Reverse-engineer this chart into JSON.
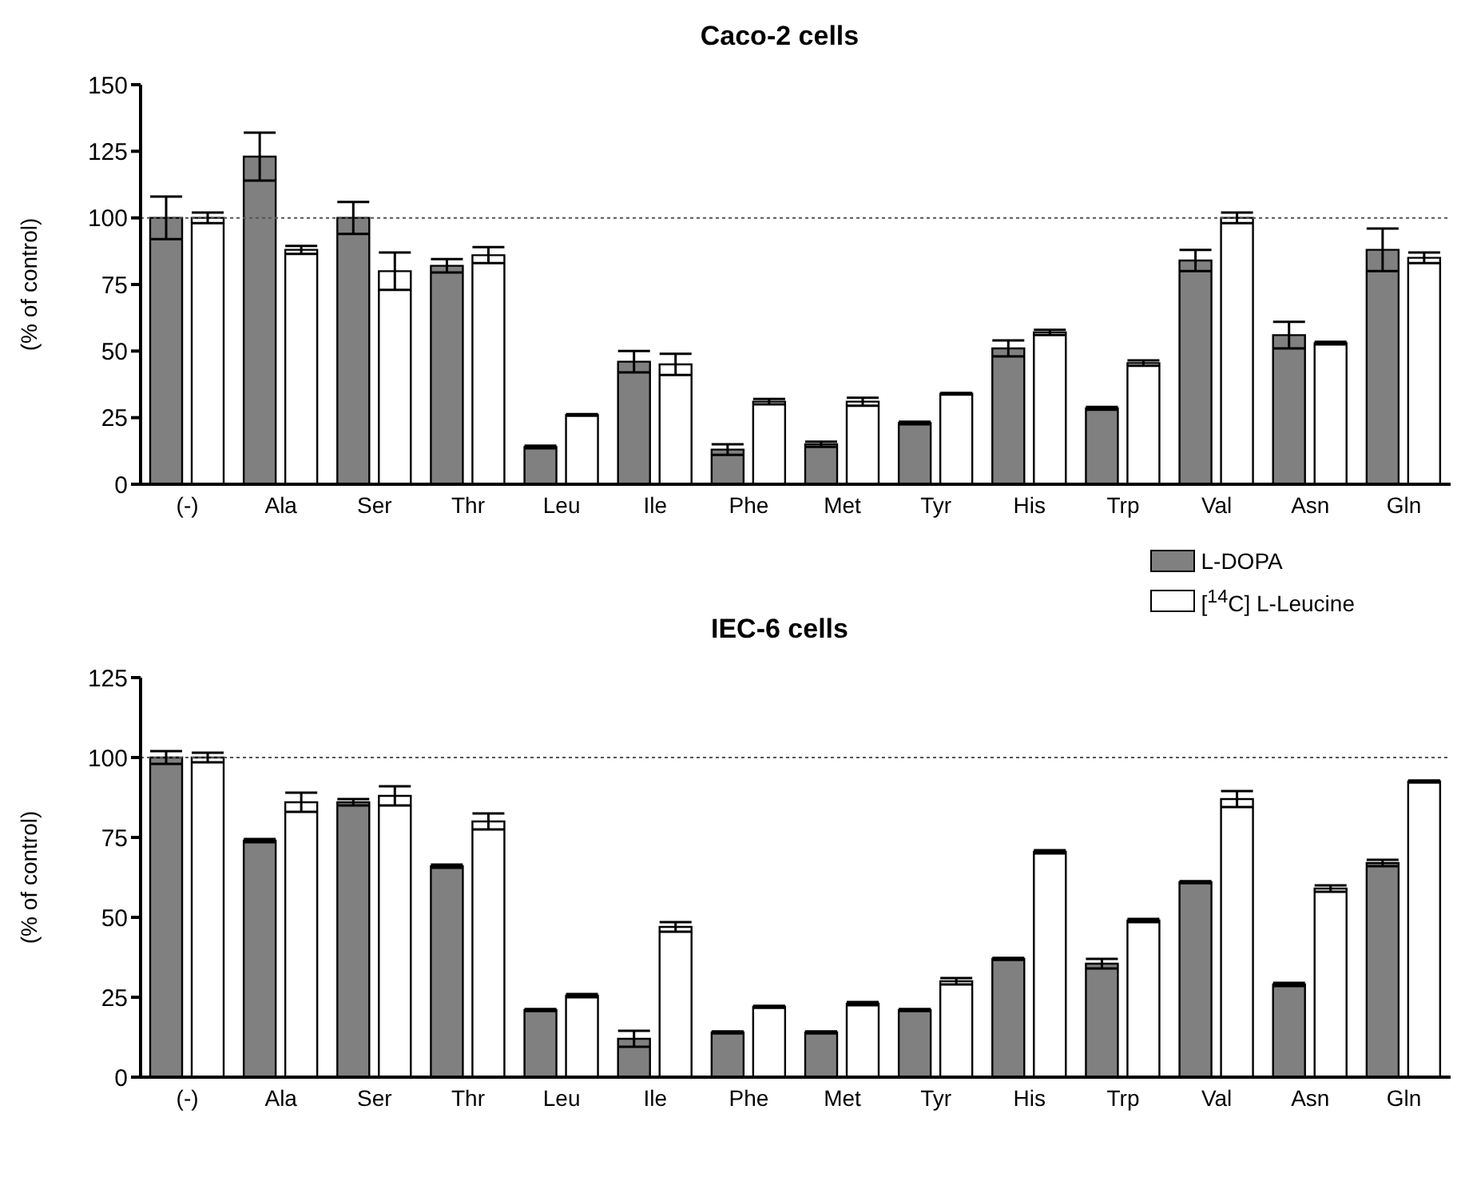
{
  "chart_data": [
    {
      "type": "bar",
      "title": "Caco-2 cells",
      "ylabel": "(% of control)",
      "categories": [
        "(-)",
        "Ala",
        "Ser",
        "Thr",
        "Leu",
        "Ile",
        "Phe",
        "Met",
        "Tyr",
        "His",
        "Trp",
        "Val",
        "Asn",
        "Gln"
      ],
      "ylim": [
        0,
        150
      ],
      "yticks": [
        0,
        25,
        50,
        75,
        100,
        125,
        150
      ],
      "grid": false,
      "legend": false,
      "ref_lines": [
        {
          "axis": "y",
          "value": 100,
          "label": null,
          "color": "#555555",
          "line_style": "dotted"
        }
      ],
      "series": [
        {
          "color": "#808080",
          "values": [
            100,
            123,
            100,
            82,
            14,
            46,
            13,
            15,
            23,
            51,
            28.5,
            84,
            56,
            88
          ],
          "errors": [
            8,
            9,
            6,
            2.5,
            0.5,
            4,
            2,
            1,
            0.5,
            3,
            0.5,
            4,
            5,
            8
          ]
        },
        {
          "color": "#ffffff",
          "values": [
            100,
            88,
            80,
            86,
            26,
            45,
            31,
            31,
            34,
            57,
            45.5,
            100,
            53,
            85
          ],
          "errors": [
            2,
            1.5,
            7,
            3,
            0.3,
            4,
            1,
            1.5,
            0.3,
            1,
            1,
            2,
            0.5,
            2
          ]
        }
      ]
    },
    {
      "type": "bar",
      "title": "IEC-6 cells",
      "ylabel": "(% of control)",
      "categories": [
        "(-)",
        "Ala",
        "Ser",
        "Thr",
        "Leu",
        "Ile",
        "Phe",
        "Met",
        "Tyr",
        "His",
        "Trp",
        "Val",
        "Asn",
        "Gln"
      ],
      "ylim": [
        0,
        125
      ],
      "yticks": [
        0,
        25,
        50,
        75,
        100,
        125
      ],
      "grid": false,
      "legend": "top right",
      "ref_lines": [
        {
          "axis": "y",
          "value": 100,
          "label": null,
          "color": "#555555",
          "line_style": "dotted"
        }
      ],
      "series": [
        {
          "name": "L-DOPA",
          "color": "#808080",
          "values": [
            100,
            74,
            86,
            66,
            21,
            12,
            14,
            14,
            21,
            37,
            35.5,
            61,
            29,
            67
          ],
          "errors": [
            2,
            0.5,
            1,
            0.5,
            0.3,
            2.5,
            0.3,
            0.3,
            0.3,
            0.3,
            1.5,
            0.3,
            0.5,
            1
          ]
        },
        {
          "name": "[$^{14}$C] L-Leucine",
          "color": "#ffffff",
          "values": [
            100,
            86,
            88,
            80,
            25.5,
            47,
            22,
            23,
            30,
            70.5,
            49,
            87,
            59,
            92.5
          ],
          "errors": [
            1.5,
            3,
            3,
            2.5,
            0.5,
            1.5,
            0.3,
            0.5,
            1,
            0.5,
            0.5,
            2.5,
            1,
            0.3
          ]
        }
      ]
    }
  ]
}
